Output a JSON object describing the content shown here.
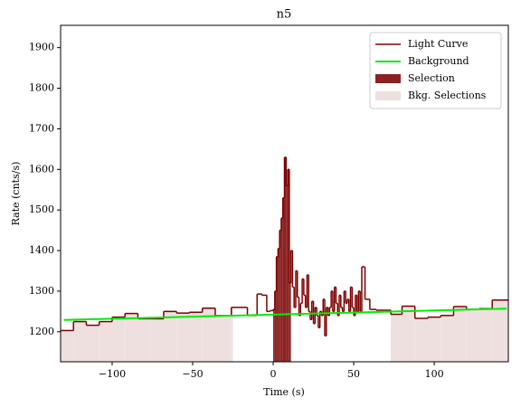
{
  "chart_data": {
    "type": "step",
    "title": "n5",
    "xlabel": "Time (s)",
    "ylabel": "Rate (cnts/s)",
    "xlim": [
      -132,
      146
    ],
    "ylim": [
      1126,
      1955
    ],
    "xticks": [
      {
        "value": -100,
        "label": "−100"
      },
      {
        "value": -50,
        "label": "−50"
      },
      0,
      50,
      100
    ],
    "yticks": [
      1200,
      1300,
      1400,
      1500,
      1600,
      1700,
      1800,
      1900
    ],
    "legend": "upper right",
    "series": [
      {
        "name": "Light Curve",
        "color": "#7b0000",
        "bins": [
          -132,
          -124,
          -116,
          -108,
          -100,
          -92,
          -84,
          -76,
          -68,
          -60,
          -52,
          -44,
          -36,
          -26,
          -16,
          -10,
          -7,
          -4,
          -2,
          0,
          1,
          2,
          3,
          4,
          5,
          6,
          7,
          8,
          9,
          10,
          11,
          12,
          13,
          14,
          15,
          16,
          17,
          18,
          19,
          20,
          21,
          22,
          23,
          24,
          25,
          26,
          27,
          28,
          29,
          30,
          31,
          32,
          33,
          34,
          35,
          36,
          37,
          38,
          39,
          40,
          41,
          42,
          43,
          44,
          45,
          46,
          47,
          48,
          49,
          50,
          51,
          52,
          53,
          54,
          55,
          57,
          60,
          64,
          73,
          80,
          88,
          96,
          104,
          112,
          120,
          128,
          136,
          146
        ],
        "values": [
          1203,
          1225,
          1216,
          1225,
          1236,
          1245,
          1232,
          1232,
          1250,
          1246,
          1248,
          1258,
          1240,
          1260,
          1240,
          1293,
          1290,
          1250,
          1252,
          1255,
          1300,
          1385,
          1405,
          1450,
          1480,
          1530,
          1630,
          1560,
          1600,
          1320,
          1400,
          1310,
          1260,
          1350,
          1285,
          1240,
          1270,
          1330,
          1290,
          1260,
          1340,
          1250,
          1230,
          1275,
          1220,
          1260,
          1240,
          1210,
          1250,
          1240,
          1280,
          1190,
          1260,
          1240,
          1260,
          1300,
          1250,
          1310,
          1270,
          1240,
          1290,
          1260,
          1250,
          1300,
          1270,
          1280,
          1250,
          1310,
          1260,
          1240,
          1290,
          1250,
          1300,
          1250,
          1360,
          1280,
          1255,
          1253,
          1243,
          1263,
          1233,
          1236,
          1240,
          1262,
          1255,
          1257,
          1278
        ]
      },
      {
        "name": "Background",
        "color": "#00ee00",
        "x": [
          -130,
          145
        ],
        "values": [
          1229,
          1257
        ]
      }
    ],
    "selection": {
      "name": "Selection",
      "color": "#8b2222",
      "range": [
        0,
        11
      ]
    },
    "bkg_selection": {
      "name": "Bkg. Selections",
      "color": "#efe0e0",
      "ranges": [
        [
          -132,
          -25
        ],
        [
          73,
          146
        ]
      ]
    }
  }
}
